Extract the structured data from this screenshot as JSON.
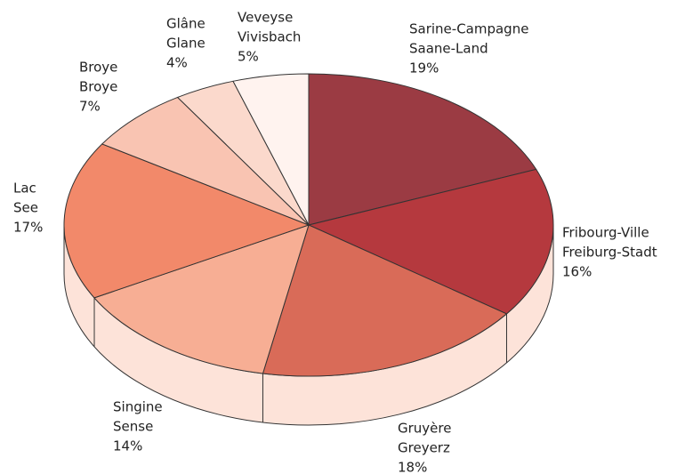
{
  "chart_data": {
    "type": "pie3d",
    "categories": [
      [
        "Sarine-Campagne",
        "Saane-Land"
      ],
      [
        "Fribourg-Ville",
        "Freiburg-Stadt"
      ],
      [
        "Gruyère",
        "Greyerz"
      ],
      [
        "Singine",
        "Sense"
      ],
      [
        "Lac",
        "See"
      ],
      [
        "Broye",
        "Broye"
      ],
      [
        "Glâne",
        "Glane"
      ],
      [
        "Veveyse",
        "Vivisbach"
      ]
    ],
    "values": [
      19,
      16,
      18,
      14,
      17,
      7,
      4,
      5
    ],
    "value_labels": [
      "19%",
      "16%",
      "18%",
      "14%",
      "17%",
      "7%",
      "4%",
      "5%"
    ],
    "colors": [
      "#9b3b43",
      "#b5393e",
      "#d96b58",
      "#f7ae94",
      "#f2896a",
      "#f9c4b2",
      "#fbd9cc",
      "#fff3ef"
    ],
    "side_color": "#fde3d9"
  }
}
